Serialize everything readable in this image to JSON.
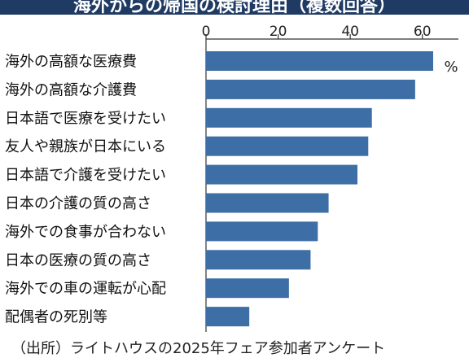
{
  "header": {
    "title": "海外からの帰国の検討理由（複数回答）"
  },
  "chart_data": {
    "type": "bar",
    "orientation": "horizontal",
    "title": "海外からの帰国の検討理由（複数回答）",
    "unit": "%",
    "xlim": [
      0,
      70
    ],
    "ticks": [
      0,
      20,
      40,
      60
    ],
    "categories": [
      "海外の高額な医療費",
      "海外の高額な介護費",
      "日本語で医療を受けたい",
      "友人や親族が日本にいる",
      "日本語で介護を受けたい",
      "日本の介護の質の高さ",
      "海外での食事が合わない",
      "日本の医療の質の高さ",
      "海外での車の運転が心配",
      "配偶者の死別等"
    ],
    "values": [
      63,
      58,
      46,
      45,
      42,
      34,
      31,
      29,
      23,
      12
    ],
    "bar_color": "#3d6ea5"
  },
  "source": "（出所）ライトハウスの2025年フェア参加者アンケート"
}
